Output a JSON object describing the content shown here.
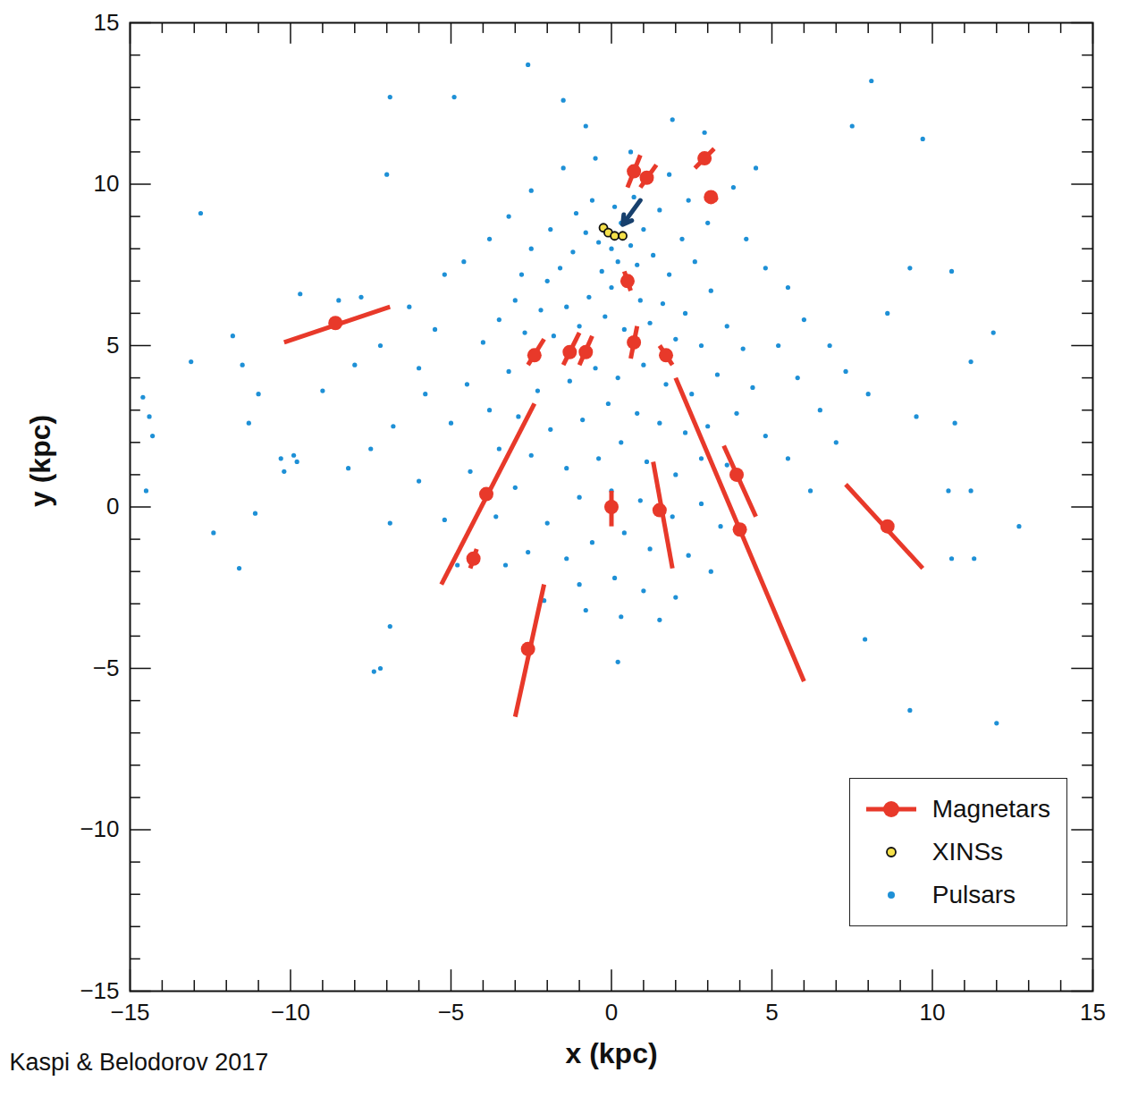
{
  "chart_data": {
    "type": "scatter",
    "xlabel": "x (kpc)",
    "ylabel": "y (kpc)",
    "source": "Kaspi & Belodorov 2017",
    "xlim": [
      -15,
      15
    ],
    "ylim": [
      -15,
      15
    ],
    "xticks": [
      -15,
      -10,
      -5,
      0,
      5,
      10,
      15
    ],
    "yticks": [
      -15,
      -10,
      -5,
      0,
      5,
      10,
      15
    ],
    "legend": "bottom-right",
    "arrow": {
      "x1": 0.9,
      "y1": 9.5,
      "x2": 0.35,
      "y2": 8.75,
      "color": "#17406d"
    },
    "series": [
      {
        "name": "Magnetars",
        "color": "#e8392a",
        "marker": "circle",
        "line_style": "solid",
        "x": [
          -8.6,
          0.7,
          1.1,
          2.9,
          3.1,
          0.5,
          -2.4,
          -1.3,
          -0.8,
          0.7,
          1.7,
          -3.9,
          -4.3,
          0.0,
          1.5,
          3.9,
          4.0,
          8.6,
          -2.6
        ],
        "y": [
          5.7,
          10.4,
          10.2,
          10.8,
          9.6,
          7.0,
          4.7,
          4.8,
          4.8,
          5.1,
          4.7,
          0.4,
          -1.6,
          0.0,
          -0.1,
          1.0,
          -0.7,
          -0.6,
          -4.4
        ],
        "error_segments": [
          [
            -10.2,
            5.1,
            -6.9,
            6.2
          ],
          [
            0.5,
            9.9,
            0.9,
            10.9
          ],
          [
            0.9,
            9.9,
            1.4,
            10.6
          ],
          [
            2.6,
            10.5,
            3.2,
            11.1
          ],
          [
            3.0,
            9.7,
            3.3,
            9.5
          ],
          [
            0.4,
            7.3,
            0.6,
            6.7
          ],
          [
            -2.6,
            4.4,
            -2.1,
            5.2
          ],
          [
            -1.5,
            4.4,
            -1.0,
            5.4
          ],
          [
            -1.0,
            4.4,
            -0.6,
            5.3
          ],
          [
            0.6,
            4.6,
            0.8,
            5.6
          ],
          [
            1.5,
            5.0,
            1.9,
            4.4
          ],
          [
            -5.3,
            -2.4,
            -2.4,
            3.2
          ],
          [
            -4.4,
            -1.9,
            -4.2,
            -1.3
          ],
          [
            0.0,
            -0.6,
            0.0,
            0.5
          ],
          [
            1.3,
            1.4,
            1.9,
            -1.9
          ],
          [
            3.5,
            1.9,
            4.5,
            -0.3
          ],
          [
            2.0,
            4.0,
            6.0,
            -5.4
          ],
          [
            7.3,
            0.7,
            9.7,
            -1.9
          ],
          [
            -3.0,
            -6.5,
            -2.1,
            -2.4
          ]
        ]
      },
      {
        "name": "XINSs",
        "color": "#f5e04a",
        "marker": "ring",
        "x": [
          -0.25,
          -0.1,
          0.1,
          0.35
        ],
        "y": [
          8.65,
          8.5,
          8.4,
          8.4
        ]
      },
      {
        "name": "Pulsars",
        "color": "#1e90d6",
        "marker": "dot",
        "x": [
          0,
          0.3,
          -0.4,
          0.6,
          -0.8,
          1.0,
          -1.2,
          0.2,
          -0.3,
          0.8,
          1.3,
          -1.6,
          1.8,
          -2.0,
          0.1,
          -0.6,
          0.7,
          -1.1,
          1.5,
          -1.9,
          2.2,
          -2.5,
          2.6,
          -2.8,
          0,
          -0.7,
          0.9,
          -1.4,
          1.6,
          -2.2,
          2.3,
          -3.0,
          3.1,
          -3.5,
          3.6,
          -0.2,
          0.4,
          -1.0,
          1.2,
          -1.8,
          2.0,
          -2.7,
          2.8,
          -4.0,
          4.1,
          -0.5,
          0.2,
          1.0,
          -1.3,
          1.7,
          -2.3,
          2.5,
          -3.2,
          3.3,
          -4.5,
          4.4,
          -0.1,
          0.8,
          -0.9,
          1.5,
          -1.9,
          2.3,
          -2.9,
          3.0,
          -3.8,
          3.9,
          -5.0,
          4.8,
          0.3,
          -0.4,
          1.1,
          -1.4,
          2.0,
          -2.5,
          2.8,
          -3.5,
          3.6,
          -4.4,
          0,
          0.9,
          -1.0,
          1.9,
          -2.0,
          2.8,
          -3.0,
          3.4,
          -3.6,
          0.4,
          -0.6,
          1.2,
          -1.4,
          2.4,
          -2.6,
          3.1,
          -3.3,
          0.1,
          1.0,
          -1.0,
          2.0,
          -2.1,
          0.3,
          -0.8,
          1.5,
          0.2,
          -5.5,
          -6.3,
          -7.2,
          -8.0,
          -9.0,
          -9.7,
          -8.5,
          -7.8,
          -6.0,
          -5.2,
          -4.6,
          -3.8,
          -3.2,
          -2.5,
          -1.5,
          -0.5,
          0.6,
          1.8,
          2.4,
          3.0,
          3.8,
          4.2,
          4.8,
          5.5,
          6.0,
          6.8,
          7.3,
          8.0,
          5.2,
          5.8,
          6.5,
          7.0,
          5.5,
          6.2,
          -5.8,
          -6.8,
          -7.5,
          -8.2,
          -9.8,
          -6.0,
          -5.2,
          -4.8,
          -14.6,
          -14.4,
          -14.3,
          -14.5,
          -13.1,
          -12.8,
          -11.8,
          -11.5,
          -11.3,
          -11.1,
          -11.6,
          -12.4,
          -11.0,
          -7.0,
          -6.9,
          -4.9,
          -2.6,
          -1.5,
          -0.8,
          1.9,
          2.9,
          4.5,
          7.5,
          8.1,
          9.7,
          9.3,
          10.6,
          8.6,
          11.9,
          11.2,
          10.7,
          9.5,
          10.5,
          11.2,
          12.7,
          11.3,
          10.6,
          12.0,
          9.3,
          7.9,
          -6.9,
          -6.9,
          -7.4,
          -7.2,
          -10.3,
          -10.2,
          -9.9
        ],
        "y": [
          8,
          8.8,
          8.2,
          8.1,
          8.5,
          8.6,
          7.9,
          7.6,
          7.3,
          7.5,
          7.8,
          7.4,
          7.2,
          7.0,
          9.3,
          9.5,
          9.6,
          9.1,
          9.2,
          8.6,
          8.3,
          8.0,
          7.6,
          7.2,
          6.8,
          6.5,
          6.4,
          6.2,
          6.3,
          6.1,
          6.0,
          6.4,
          6.7,
          5.8,
          5.6,
          5.9,
          5.5,
          5.6,
          5.7,
          5.3,
          5.2,
          5.4,
          5.0,
          5.1,
          4.9,
          4.3,
          4.0,
          4.4,
          3.9,
          3.8,
          3.6,
          3.5,
          4.2,
          4.1,
          3.8,
          3.7,
          3.2,
          2.9,
          2.7,
          2.6,
          2.4,
          2.3,
          2.8,
          2.5,
          3.0,
          2.9,
          2.6,
          2.2,
          2.0,
          1.5,
          1.4,
          1.2,
          1.0,
          1.6,
          1.5,
          1.8,
          1.3,
          1.1,
          0.5,
          0.2,
          0.3,
          -0.3,
          -0.5,
          0.1,
          0.6,
          -0.6,
          -0.3,
          -0.8,
          -1.1,
          -1.3,
          -1.6,
          -1.5,
          -1.4,
          -2.0,
          -1.8,
          -2.2,
          -2.6,
          -2.4,
          -2.8,
          -2.9,
          -3.4,
          -3.2,
          -3.5,
          -4.8,
          5.5,
          6.2,
          5.0,
          4.4,
          3.6,
          6.6,
          6.4,
          6.5,
          4.3,
          7.2,
          7.6,
          8.3,
          9.0,
          9.8,
          10.5,
          10.8,
          11.0,
          10.3,
          9.5,
          8.8,
          9.9,
          8.3,
          7.4,
          6.8,
          5.8,
          5.0,
          4.2,
          3.5,
          5.0,
          4.0,
          3.0,
          2.0,
          1.5,
          0.5,
          3.5,
          2.5,
          1.8,
          1.2,
          1.4,
          0.8,
          -0.4,
          -1.8,
          3.4,
          2.8,
          2.2,
          0.5,
          4.5,
          9.1,
          5.3,
          4.4,
          2.6,
          -0.2,
          -1.9,
          -0.8,
          3.5,
          10.3,
          12.7,
          12.7,
          13.7,
          12.6,
          11.8,
          12.0,
          11.6,
          10.5,
          11.8,
          13.2,
          11.4,
          7.4,
          7.3,
          6.0,
          5.4,
          4.5,
          2.6,
          2.8,
          0.5,
          0.5,
          -0.6,
          -1.6,
          -1.6,
          -6.7,
          -6.3,
          -4.1,
          -0.5,
          -3.7,
          -5.1,
          -5.0,
          1.5,
          1.1,
          1.6
        ]
      }
    ]
  }
}
